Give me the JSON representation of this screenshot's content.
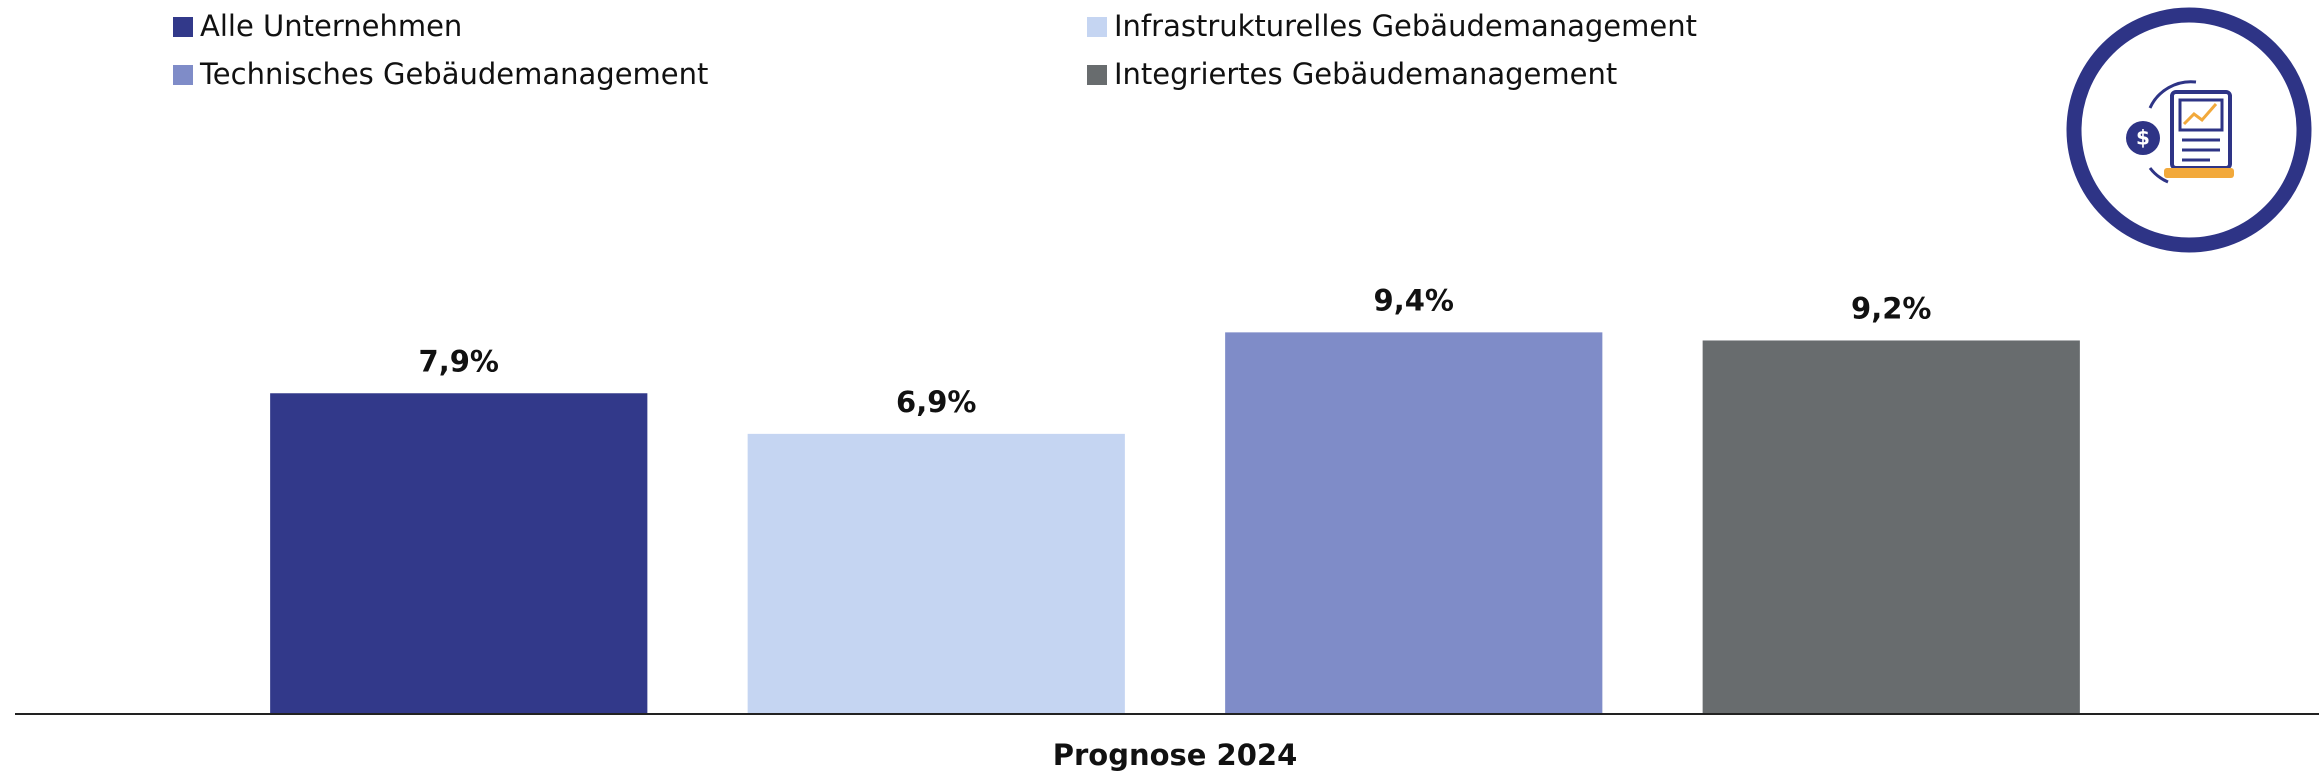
{
  "chart_data": {
    "type": "bar",
    "categories": [
      "Prognose 2024"
    ],
    "series": [
      {
        "name": "Alle Unternehmen",
        "color": "#32398a",
        "values": [
          7.9
        ],
        "value_labels": [
          "7,9%"
        ]
      },
      {
        "name": "Infrastrukturelles Gebäudemanagement",
        "color": "#c5d5f2",
        "values": [
          6.9
        ],
        "value_labels": [
          "6,9%"
        ]
      },
      {
        "name": "Technisches Gebäudemanagement",
        "color": "#7f8cc8",
        "values": [
          9.4
        ],
        "value_labels": [
          "9,4%"
        ]
      },
      {
        "name": "Integriertes Gebäudemanagement",
        "color": "#686c6e",
        "values": [
          9.2
        ],
        "value_labels": [
          "9,2%"
        ]
      }
    ],
    "ylim": [
      0,
      10
    ],
    "grid": false,
    "legend": "top"
  }
}
